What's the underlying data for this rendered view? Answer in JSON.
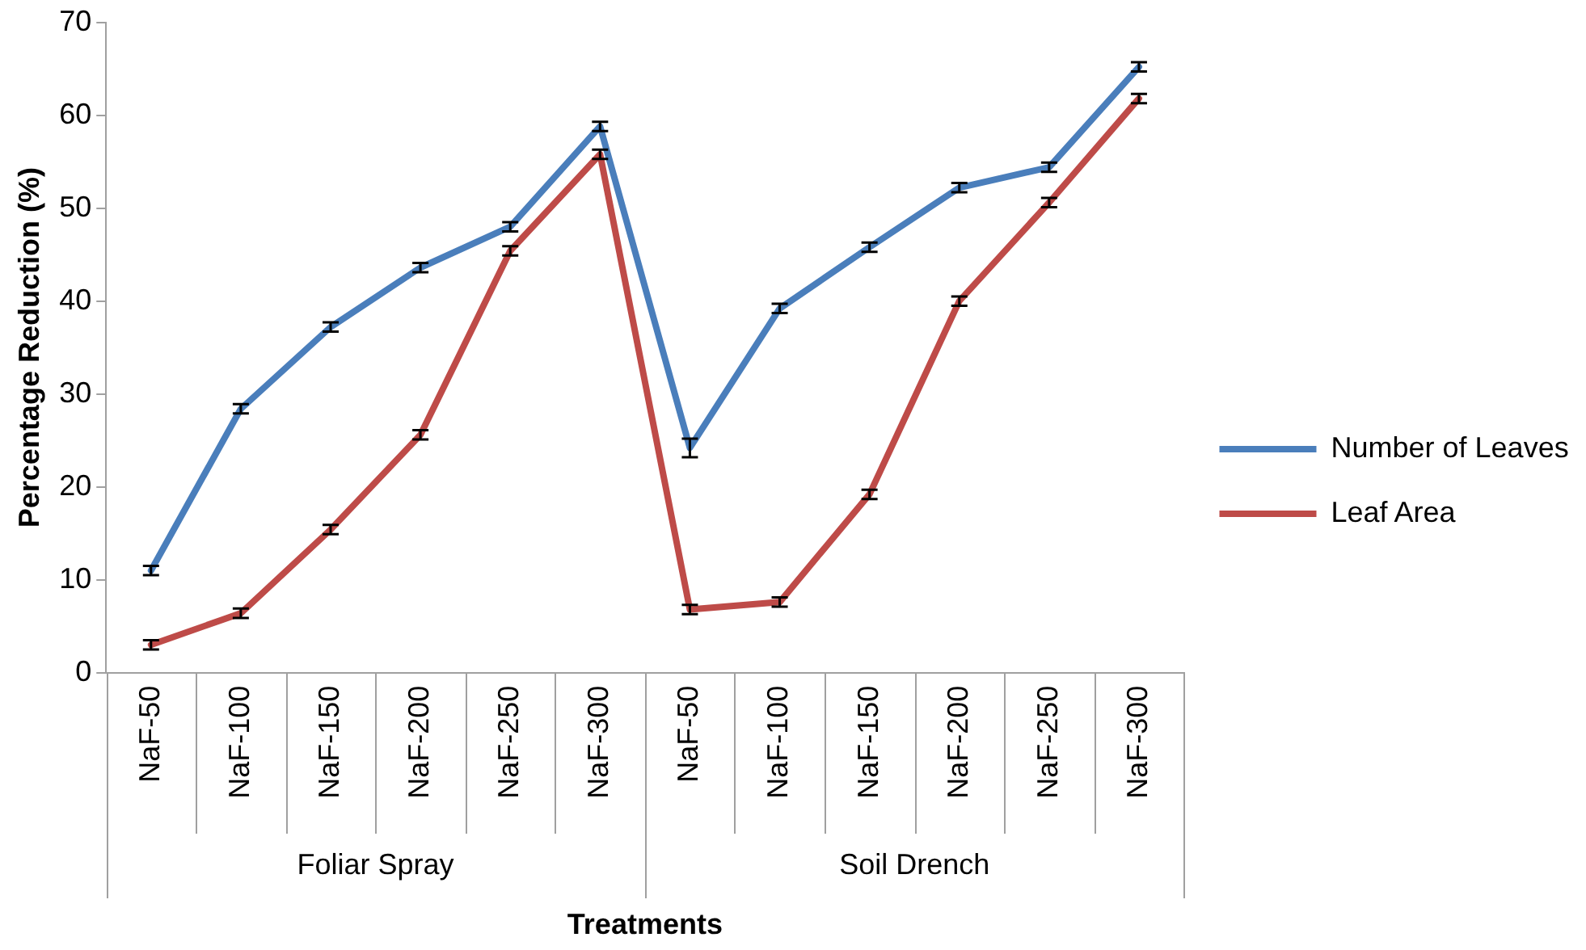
{
  "chart_data": {
    "type": "line",
    "ylabel": "Percentage Reduction (%)",
    "xlabel": "Treatments",
    "categories": [
      "NaF-50",
      "NaF-100",
      "NaF-150",
      "NaF-200",
      "NaF-250",
      "NaF-300",
      "NaF-50",
      "NaF-100",
      "NaF-150",
      "NaF-200",
      "NaF-250",
      "NaF-300"
    ],
    "annotations": [
      "Foliar Spray",
      "Soil Drench"
    ],
    "series": [
      {
        "name": "Number of Leaves",
        "color": "#4a7ebb",
        "values": [
          11,
          28.4,
          37.2,
          43.6,
          48,
          58.8,
          24.2,
          39.2,
          45.8,
          52.2,
          54.4,
          65.2
        ],
        "errors": [
          0.5,
          0.5,
          0.5,
          0.5,
          0.5,
          0.5,
          1,
          0.5,
          0.5,
          0.5,
          0.5,
          0.5
        ]
      },
      {
        "name": "Leaf Area",
        "color": "#be4b48",
        "values": [
          3,
          6.4,
          15.4,
          25.6,
          45.4,
          55.8,
          6.8,
          7.6,
          19.2,
          40,
          50.6,
          61.8
        ],
        "errors": [
          0.5,
          0.5,
          0.5,
          0.5,
          0.5,
          0.5,
          0.5,
          0.5,
          0.5,
          0.5,
          0.5,
          0.5
        ]
      }
    ],
    "ylim": [
      0,
      70
    ],
    "yticks": [
      0,
      10,
      20,
      30,
      40,
      50,
      60,
      70
    ],
    "grid": false,
    "legend": "right",
    "marker": "none",
    "line_style": "solid"
  }
}
